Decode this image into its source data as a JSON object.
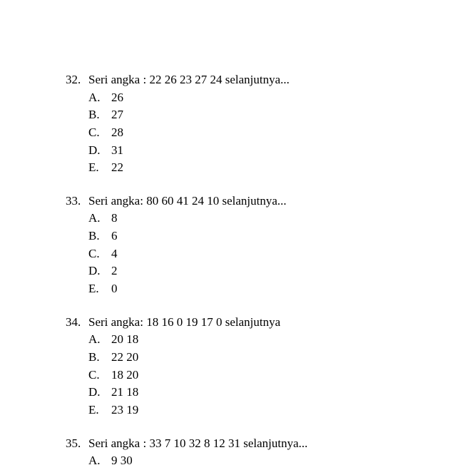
{
  "document": {
    "font_family": "Times New Roman",
    "font_size_pt": 17,
    "text_color": "#000000",
    "background_color": "#ffffff",
    "questions": [
      {
        "number": "32.",
        "prompt": "Seri angka : 22  26  23  27  24  selanjutnya...",
        "options": [
          {
            "letter": "A.",
            "value": "26"
          },
          {
            "letter": "B.",
            "value": "27"
          },
          {
            "letter": "C.",
            "value": "28"
          },
          {
            "letter": "D.",
            "value": "31"
          },
          {
            "letter": "E.",
            "value": "22"
          }
        ]
      },
      {
        "number": "33.",
        "prompt": "Seri angka: 80  60  41  24  10   selanjutnya...",
        "options": [
          {
            "letter": "A.",
            "value": "8"
          },
          {
            "letter": "B.",
            "value": "6"
          },
          {
            "letter": "C.",
            "value": "4"
          },
          {
            "letter": "D.",
            "value": "2"
          },
          {
            "letter": "E.",
            "value": "0"
          }
        ]
      },
      {
        "number": "34.",
        "prompt": "Seri angka: 18  16  0  19  17  0  selanjutnya",
        "options": [
          {
            "letter": "A.",
            "value": "20  18"
          },
          {
            "letter": "B.",
            "value": "22  20"
          },
          {
            "letter": "C.",
            "value": "18  20"
          },
          {
            "letter": "D.",
            "value": "21  18"
          },
          {
            "letter": "E.",
            "value": "23  19"
          }
        ]
      },
      {
        "number": "35.",
        "prompt": "Seri angka : 33  7  10  32  8  12  31  selanjutnya...",
        "options": [
          {
            "letter": "A.",
            "value": "9  30"
          }
        ]
      }
    ]
  }
}
